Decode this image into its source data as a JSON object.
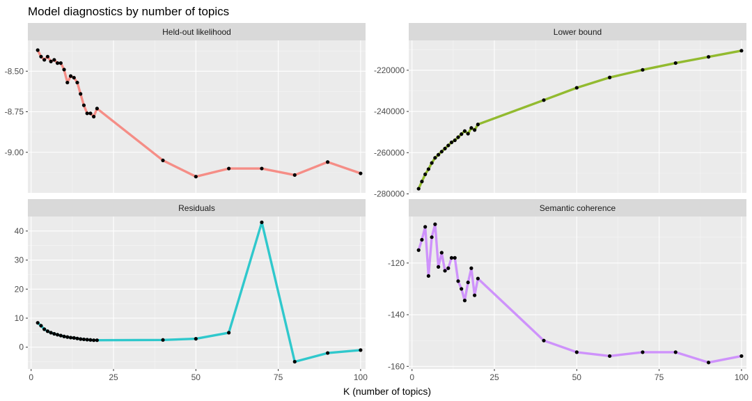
{
  "chart_data": {
    "type": "line",
    "title": "Model diagnostics by number of topics",
    "xlabel": "K (number of topics)",
    "grid": true,
    "legend": "none",
    "x_ticks": [
      "0",
      "25",
      "50",
      "75",
      "100"
    ],
    "x_tick_values": [
      0,
      25,
      50,
      75,
      100
    ],
    "xlim": [
      -1,
      101.5
    ],
    "panels": [
      {
        "name": "Held-out likelihood",
        "color": "#F8766D",
        "ylim": [
          -9.25,
          -8.31
        ],
        "y_ticks": [
          "-8.50",
          "-8.75",
          "-9.00"
        ],
        "y_tick_values": [
          -8.5,
          -8.75,
          -9.0
        ],
        "x": [
          2,
          3,
          4,
          5,
          6,
          7,
          8,
          9,
          10,
          11,
          12,
          13,
          14,
          15,
          16,
          17,
          18,
          19,
          20,
          40,
          50,
          60,
          70,
          80,
          90,
          100
        ],
        "y": [
          -8.37,
          -8.41,
          -8.43,
          -8.41,
          -8.44,
          -8.43,
          -8.45,
          -8.45,
          -8.49,
          -8.57,
          -8.53,
          -8.54,
          -8.57,
          -8.64,
          -8.71,
          -8.76,
          -8.76,
          -8.78,
          -8.73,
          -9.05,
          -9.15,
          -9.1,
          -9.1,
          -9.14,
          -9.06,
          -9.13
        ]
      },
      {
        "name": "Lower bound",
        "color": "#7CAE00",
        "ylim": [
          -279500,
          -205500
        ],
        "y_ticks": [
          "-220000",
          "-240000",
          "-260000",
          "-280000"
        ],
        "y_tick_values": [
          -220000,
          -240000,
          -260000,
          -280000
        ],
        "x": [
          2,
          3,
          4,
          5,
          6,
          7,
          8,
          9,
          10,
          11,
          12,
          13,
          14,
          15,
          16,
          17,
          18,
          19,
          20,
          40,
          50,
          60,
          70,
          80,
          90,
          100
        ],
        "y": [
          -277500,
          -274000,
          -270500,
          -268000,
          -265000,
          -262500,
          -261000,
          -259500,
          -258000,
          -256500,
          -255000,
          -254000,
          -252500,
          -251000,
          -249500,
          -250800,
          -248000,
          -249000,
          -246300,
          -234500,
          -228500,
          -223500,
          -219800,
          -216500,
          -213500,
          -210500
        ]
      },
      {
        "name": "Residuals",
        "color": "#00BFC4",
        "ylim": [
          -7.5,
          45
        ],
        "y_ticks": [
          "40",
          "30",
          "20",
          "10",
          "0"
        ],
        "y_tick_values": [
          40,
          30,
          20,
          10,
          0
        ],
        "x": [
          2,
          3,
          4,
          5,
          6,
          7,
          8,
          9,
          10,
          11,
          12,
          13,
          14,
          15,
          16,
          17,
          18,
          19,
          20,
          40,
          50,
          60,
          70,
          80,
          90,
          100
        ],
        "y": [
          8.4,
          7.4,
          6.2,
          5.5,
          5.0,
          4.6,
          4.3,
          4.0,
          3.7,
          3.5,
          3.3,
          3.2,
          3.0,
          2.8,
          2.7,
          2.6,
          2.5,
          2.4,
          2.4,
          2.5,
          2.9,
          5.0,
          43,
          -5.0,
          -2.0,
          -1.0
        ]
      },
      {
        "name": "Semantic coherence",
        "color": "#C77CFF",
        "ylim": [
          -161,
          -102
        ],
        "y_ticks": [
          "-120",
          "-140",
          "-160"
        ],
        "y_tick_values": [
          -120,
          -140,
          -160
        ],
        "x": [
          2,
          3,
          4,
          5,
          6,
          7,
          8,
          9,
          10,
          11,
          12,
          13,
          14,
          15,
          16,
          17,
          18,
          19,
          20,
          40,
          50,
          60,
          70,
          80,
          90,
          100
        ],
        "y": [
          -115,
          -111,
          -106,
          -125,
          -110,
          -105,
          -121.5,
          -116,
          -123,
          -122,
          -118,
          -118,
          -127,
          -130,
          -134.5,
          -127.5,
          -122,
          -132.5,
          -126,
          -150,
          -154.5,
          -156,
          -154.5,
          -154.5,
          -158.5,
          -156
        ]
      }
    ]
  }
}
